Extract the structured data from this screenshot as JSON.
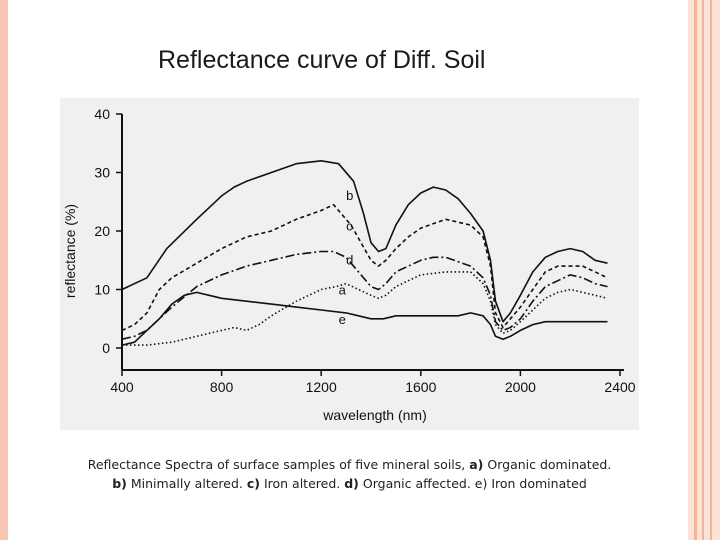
{
  "slide": {
    "title": "Reflectance curve of Diff. Soil"
  },
  "caption": {
    "line1_text": "Reflectance Spectra of surface samples of five mineral soils,",
    "line1_a_key": "a)",
    "line1_a_text": " Organic dominated.",
    "line2_b_key": "b)",
    "line2_b_text": " Minimally altered.",
    "line2_c_key": "c)",
    "line2_c_text": "  Iron altered.",
    "line2_d_key": "d)",
    "line2_d_text": " Organic affected.",
    "line2_e_text": " e) Iron dominated"
  },
  "chart_data": {
    "type": "line",
    "title": "",
    "xlabel": "wavelength (nm)",
    "ylabel": "reflectance (%)",
    "xlim": [
      400,
      2400
    ],
    "ylim": [
      0,
      40
    ],
    "xticks": [
      400,
      800,
      1200,
      1600,
      2000,
      2400
    ],
    "yticks": [
      0,
      10,
      20,
      30,
      40
    ],
    "grid": false,
    "legend": "inline labels",
    "series": [
      {
        "name": "b",
        "style": "solid",
        "label_at": [
          1300,
          26
        ],
        "points": [
          [
            400,
            10
          ],
          [
            500,
            12
          ],
          [
            580,
            17
          ],
          [
            700,
            22
          ],
          [
            800,
            26
          ],
          [
            850,
            27.5
          ],
          [
            900,
            28.5
          ],
          [
            1000,
            30
          ],
          [
            1100,
            31.5
          ],
          [
            1200,
            32
          ],
          [
            1270,
            31.5
          ],
          [
            1330,
            28.5
          ],
          [
            1370,
            23
          ],
          [
            1400,
            18
          ],
          [
            1430,
            16.5
          ],
          [
            1460,
            17
          ],
          [
            1500,
            21
          ],
          [
            1550,
            24.5
          ],
          [
            1600,
            26.5
          ],
          [
            1650,
            27.5
          ],
          [
            1700,
            27
          ],
          [
            1750,
            25.5
          ],
          [
            1800,
            23
          ],
          [
            1850,
            20
          ],
          [
            1880,
            15
          ],
          [
            1900,
            8
          ],
          [
            1930,
            4.5
          ],
          [
            1960,
            6
          ],
          [
            2000,
            9
          ],
          [
            2050,
            13
          ],
          [
            2100,
            15.5
          ],
          [
            2150,
            16.5
          ],
          [
            2200,
            17
          ],
          [
            2250,
            16.5
          ],
          [
            2300,
            15
          ],
          [
            2350,
            14.5
          ]
        ]
      },
      {
        "name": "c",
        "style": "dashed",
        "label_at": [
          1300,
          20.8
        ],
        "points": [
          [
            400,
            3
          ],
          [
            450,
            4
          ],
          [
            500,
            6
          ],
          [
            550,
            10
          ],
          [
            600,
            12
          ],
          [
            700,
            14.5
          ],
          [
            800,
            17
          ],
          [
            900,
            19
          ],
          [
            1000,
            20
          ],
          [
            1100,
            22
          ],
          [
            1200,
            23.5
          ],
          [
            1250,
            24.5
          ],
          [
            1280,
            23
          ],
          [
            1320,
            21
          ],
          [
            1360,
            18
          ],
          [
            1400,
            15
          ],
          [
            1430,
            14
          ],
          [
            1460,
            15
          ],
          [
            1500,
            17
          ],
          [
            1550,
            19
          ],
          [
            1600,
            20.5
          ],
          [
            1700,
            22
          ],
          [
            1800,
            21
          ],
          [
            1850,
            19
          ],
          [
            1880,
            14
          ],
          [
            1900,
            6
          ],
          [
            1930,
            3.5
          ],
          [
            1960,
            5
          ],
          [
            2000,
            7
          ],
          [
            2050,
            10
          ],
          [
            2100,
            13
          ],
          [
            2150,
            14
          ],
          [
            2200,
            14
          ],
          [
            2250,
            14
          ],
          [
            2300,
            13
          ],
          [
            2350,
            12
          ]
        ]
      },
      {
        "name": "d",
        "style": "dashdot",
        "label_at": [
          1300,
          15
        ],
        "points": [
          [
            400,
            1.5
          ],
          [
            450,
            2
          ],
          [
            500,
            3
          ],
          [
            550,
            5
          ],
          [
            600,
            7
          ],
          [
            700,
            10.5
          ],
          [
            800,
            12.5
          ],
          [
            900,
            14
          ],
          [
            1000,
            15
          ],
          [
            1100,
            16
          ],
          [
            1200,
            16.5
          ],
          [
            1250,
            16.5
          ],
          [
            1300,
            15.5
          ],
          [
            1350,
            13
          ],
          [
            1400,
            10.5
          ],
          [
            1430,
            10
          ],
          [
            1460,
            11
          ],
          [
            1500,
            13
          ],
          [
            1550,
            14
          ],
          [
            1600,
            15
          ],
          [
            1650,
            15.5
          ],
          [
            1700,
            15.5
          ],
          [
            1800,
            14
          ],
          [
            1850,
            12
          ],
          [
            1880,
            9
          ],
          [
            1900,
            4.5
          ],
          [
            1930,
            3
          ],
          [
            1960,
            3.5
          ],
          [
            2000,
            5
          ],
          [
            2050,
            8
          ],
          [
            2100,
            10.5
          ],
          [
            2150,
            11.5
          ],
          [
            2200,
            12.5
          ],
          [
            2250,
            12
          ],
          [
            2300,
            11
          ],
          [
            2350,
            10.5
          ]
        ]
      },
      {
        "name": "a",
        "style": "dotted",
        "label_at": [
          1270,
          9.8
        ],
        "points": [
          [
            400,
            0.5
          ],
          [
            500,
            0.5
          ],
          [
            600,
            1
          ],
          [
            700,
            2
          ],
          [
            800,
            3
          ],
          [
            850,
            3.5
          ],
          [
            900,
            3
          ],
          [
            950,
            4
          ],
          [
            1000,
            5.5
          ],
          [
            1100,
            8
          ],
          [
            1200,
            10
          ],
          [
            1260,
            10.5
          ],
          [
            1300,
            11
          ],
          [
            1350,
            10
          ],
          [
            1400,
            9
          ],
          [
            1430,
            8.5
          ],
          [
            1460,
            9
          ],
          [
            1500,
            10.5
          ],
          [
            1550,
            11.5
          ],
          [
            1600,
            12.5
          ],
          [
            1700,
            13
          ],
          [
            1800,
            13
          ],
          [
            1850,
            11
          ],
          [
            1880,
            8
          ],
          [
            1900,
            4
          ],
          [
            1930,
            2.5
          ],
          [
            1960,
            3
          ],
          [
            2000,
            4.5
          ],
          [
            2050,
            6.5
          ],
          [
            2100,
            8.5
          ],
          [
            2150,
            9.5
          ],
          [
            2200,
            10
          ],
          [
            2250,
            9.5
          ],
          [
            2300,
            9
          ],
          [
            2350,
            8.5
          ]
        ]
      },
      {
        "name": "e",
        "style": "solid",
        "label_at": [
          1270,
          4.8
        ],
        "points": [
          [
            400,
            0.5
          ],
          [
            450,
            1
          ],
          [
            500,
            3
          ],
          [
            550,
            5
          ],
          [
            600,
            7.5
          ],
          [
            650,
            9
          ],
          [
            700,
            9.5
          ],
          [
            750,
            9
          ],
          [
            800,
            8.5
          ],
          [
            900,
            8
          ],
          [
            1000,
            7.5
          ],
          [
            1100,
            7
          ],
          [
            1200,
            6.5
          ],
          [
            1300,
            6
          ],
          [
            1350,
            5.5
          ],
          [
            1400,
            5
          ],
          [
            1450,
            5
          ],
          [
            1500,
            5.5
          ],
          [
            1600,
            5.5
          ],
          [
            1700,
            5.5
          ],
          [
            1750,
            5.5
          ],
          [
            1800,
            6
          ],
          [
            1850,
            5.5
          ],
          [
            1880,
            4
          ],
          [
            1900,
            2
          ],
          [
            1930,
            1.5
          ],
          [
            1960,
            2
          ],
          [
            2000,
            3
          ],
          [
            2050,
            4
          ],
          [
            2100,
            4.5
          ],
          [
            2200,
            4.5
          ],
          [
            2300,
            4.5
          ],
          [
            2350,
            4.5
          ]
        ]
      }
    ]
  }
}
